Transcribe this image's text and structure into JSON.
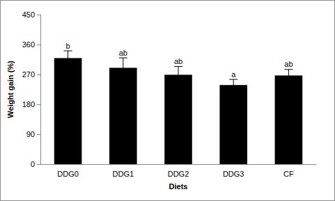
{
  "chart_data": {
    "type": "bar",
    "categories": [
      "DDG0",
      "DDG1",
      "DDG2",
      "DDG3",
      "CF"
    ],
    "values": [
      319,
      290,
      269,
      238,
      267
    ],
    "errors": [
      22,
      30,
      25,
      17,
      18
    ],
    "letters": [
      "b",
      "ab",
      "ab",
      "a",
      "ab"
    ],
    "color": "#000000",
    "xlabel": "Diets",
    "ylabel": "Weight gain (%)",
    "ylim": [
      0,
      450
    ],
    "yticks": [
      0,
      90,
      180,
      270,
      360,
      450
    ],
    "grid": false
  }
}
